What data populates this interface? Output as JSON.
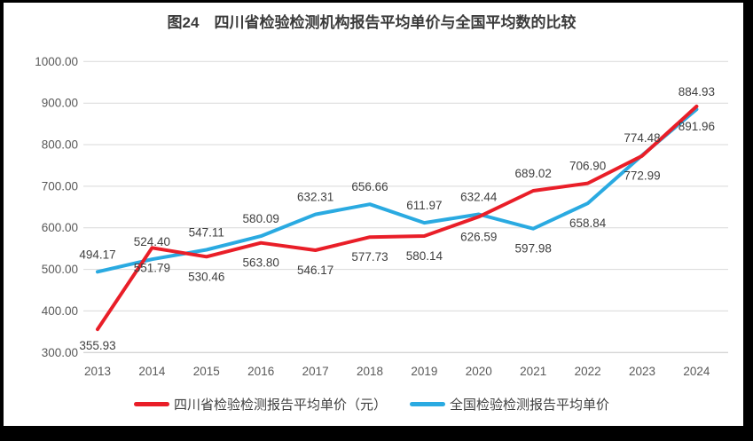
{
  "chart_data": {
    "type": "line",
    "title": "图24　四川省检验检测机构报告平均单价与全国平均数的比较",
    "categories": [
      "2013",
      "2014",
      "2015",
      "2016",
      "2017",
      "2018",
      "2019",
      "2020",
      "2021",
      "2022",
      "2023",
      "2024"
    ],
    "series": [
      {
        "id": "sichuan",
        "name": "四川省检验检测报告平均单价（元）",
        "color": "#e91e28",
        "values": [
          355.93,
          551.79,
          530.46,
          563.8,
          546.17,
          577.73,
          580.14,
          626.59,
          689.02,
          706.9,
          772.99,
          891.96
        ],
        "label_side": [
          "below",
          "below",
          "below",
          "below",
          "below",
          "below",
          "below",
          "below",
          "above",
          "above",
          "below",
          "below"
        ]
      },
      {
        "id": "national",
        "name": "全国检验检测报告平均单价",
        "color": "#2aaae1",
        "values": [
          494.17,
          524.4,
          547.11,
          580.09,
          632.31,
          656.66,
          611.97,
          632.44,
          597.98,
          658.84,
          774.48,
          884.93
        ],
        "label_side": [
          "above",
          "above",
          "above",
          "above",
          "above",
          "above",
          "above",
          "above",
          "below",
          "below",
          "above",
          "above"
        ]
      }
    ],
    "ylim": [
      300,
      1000
    ],
    "ytick_step": 100,
    "ytick_labels": [
      "1000.00",
      "900.00",
      "800.00",
      "700.00",
      "600.00",
      "500.00",
      "400.00",
      "300.00"
    ],
    "xlabel": "",
    "ylabel": "",
    "grid": true,
    "legend_position": "bottom",
    "colors": {
      "gridline": "#d9d9d9",
      "baseline": "#c6c6c6",
      "axis_tick_text": "#595959",
      "data_label_text": "#3f3f3f",
      "frame_border": "#000000"
    }
  }
}
